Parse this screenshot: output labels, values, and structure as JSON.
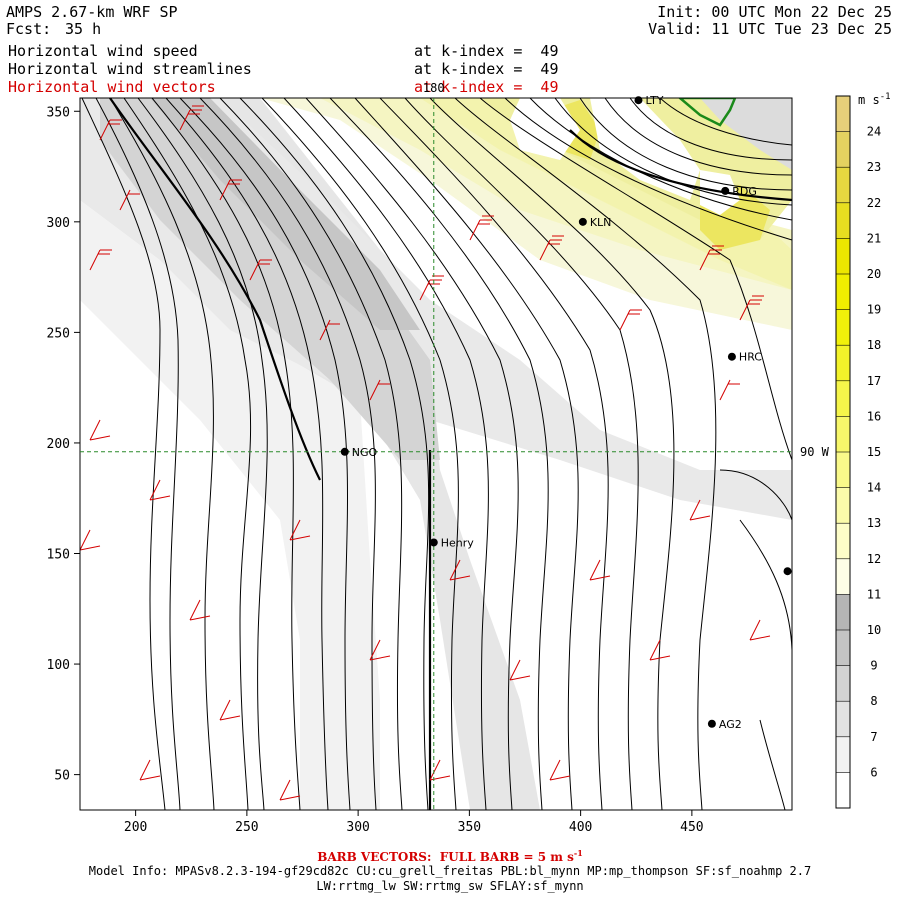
{
  "header": {
    "title": "AMPS 2.67-km WRF SP",
    "forecast_label": "Fcst:",
    "forecast_hours": "35 h",
    "init": "Init: 00 UTC Mon 22 Dec 25",
    "valid": "Valid: 11 UTC Tue 23 Dec 25"
  },
  "fields": [
    {
      "name": "Horizontal wind speed",
      "level": "at k-index =  49",
      "color": "#000000"
    },
    {
      "name": "Horizontal wind streamlines",
      "level": "at k-index =  49",
      "color": "#000000"
    },
    {
      "name": "Horizontal wind vectors",
      "level": "at k-index =  49",
      "color": "#cc0000"
    }
  ],
  "axes": {
    "x_ticks": [
      200,
      250,
      300,
      350,
      400,
      450
    ],
    "y_ticks": [
      50,
      100,
      150,
      200,
      250,
      300,
      350
    ],
    "x_range": [
      175,
      495
    ],
    "y_range": [
      34,
      356
    ]
  },
  "guides": {
    "vertical_label": "180",
    "vertical_x": 334,
    "horizontal_label": "90 W",
    "horizontal_y": 196
  },
  "stations": [
    {
      "id": "LTY",
      "label": "LTY",
      "x": 426,
      "y": 355
    },
    {
      "id": "RDG",
      "label": "RDG",
      "x": 465,
      "y": 314
    },
    {
      "id": "KLN",
      "label": "KLN",
      "x": 401,
      "y": 300
    },
    {
      "id": "HRC",
      "label": "HRC",
      "x": 468,
      "y": 239
    },
    {
      "id": "NGO",
      "label": "NGO",
      "x": 294,
      "y": 196
    },
    {
      "id": "henry",
      "label": "Henry",
      "x": 334,
      "y": 155
    },
    {
      "id": "AG2",
      "label": "AG2",
      "x": 459,
      "y": 73
    },
    {
      "id": "edge",
      "label": "",
      "x": 493,
      "y": 142
    }
  ],
  "colorbar": {
    "unit": "m s",
    "unit_exp": "-1",
    "levels": [
      6,
      7,
      8,
      9,
      10,
      11,
      12,
      13,
      14,
      15,
      16,
      17,
      18,
      19,
      20,
      21,
      22,
      23,
      24
    ],
    "colors": [
      "#ffffff",
      "#f2f2f2",
      "#e2e2e2",
      "#d3d3d3",
      "#c4c4c4",
      "#b5b5b5",
      "#fefee6",
      "#fdfdc8",
      "#fbfbaa",
      "#f9f98a",
      "#f7f76a",
      "#f5f54a",
      "#f3f32a",
      "#f1f10a",
      "#f0ee00",
      "#ece600",
      "#e8de20",
      "#e6d840",
      "#e4d260",
      "#e6cf7a"
    ]
  },
  "footer": {
    "barb_note": "BARB VECTORS:  FULL BARB = 5 m s",
    "barb_exp": "-1",
    "model_info": "Model Info: MPASv8.2.3-194-gf29cd82c CU:cu_grell_freitas PBL:bl_mynn MP:mp_thompson SF:sf_noahmp 2.7",
    "model_info2": "LW:rrtmg_lw SW:rrtmg_sw SFLAY:sf_mynn"
  }
}
